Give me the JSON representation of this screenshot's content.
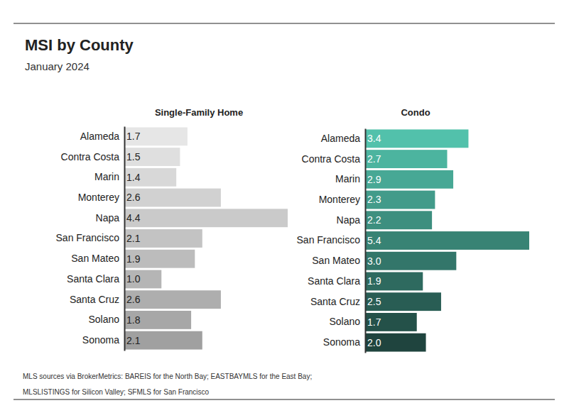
{
  "title": "MSI by County",
  "subtitle": "January 2024",
  "source": "MLS sources via BrokerMetrics: BAREIS for the North Bay; EASTBAYMLS for the East Bay; MLSLISTINGS for Silicon Valley; SFMLS for San Francisco",
  "chart_data": [
    {
      "type": "bar",
      "title": "Single-Family Home",
      "orientation": "horizontal",
      "categories": [
        "Alameda",
        "Contra Costa",
        "Marin",
        "Monterey",
        "Napa",
        "San Francisco",
        "San Mateo",
        "Santa Clara",
        "Santa Cruz",
        "Solano",
        "Sonoma"
      ],
      "values": [
        1.7,
        1.5,
        1.4,
        2.6,
        4.4,
        2.1,
        1.9,
        1.0,
        2.6,
        1.8,
        2.1
      ],
      "value_labels": [
        "1.7",
        "1.5",
        "1.4",
        "2.6",
        "4.4",
        "2.1",
        "1.9",
        "1.0",
        "2.6",
        "1.8",
        "2.1"
      ],
      "colors": [
        "#e6e6e6",
        "#dfdfdf",
        "#d8d8d8",
        "#d1d1d1",
        "#cacaca",
        "#c3c3c3",
        "#bcbcbc",
        "#b5b5b5",
        "#aeaeae",
        "#a7a7a7",
        "#a0a0a0"
      ],
      "xlim": [
        0,
        4.4
      ],
      "data_labels": true,
      "tick_labels": "y"
    },
    {
      "type": "bar",
      "title": "Condo",
      "orientation": "horizontal",
      "categories": [
        "Alameda",
        "Contra Costa",
        "Marin",
        "Monterey",
        "Napa",
        "San Francisco",
        "San Mateo",
        "Santa Clara",
        "Santa Cruz",
        "Solano",
        "Sonoma"
      ],
      "values": [
        3.4,
        2.7,
        2.9,
        2.3,
        2.2,
        5.4,
        3.0,
        1.9,
        2.5,
        1.7,
        2.0
      ],
      "value_labels": [
        "3.4",
        "2.7",
        "2.9",
        "2.3",
        "2.2",
        "5.4",
        "3.0",
        "1.9",
        "2.5",
        "1.7",
        "2.0"
      ],
      "colors": [
        "#52c1ab",
        "#4cb49f",
        "#47a895",
        "#429b8a",
        "#3d8f7f",
        "#388374",
        "#33766a",
        "#2e6a5f",
        "#295d54",
        "#245149",
        "#1f443e"
      ],
      "xlim": [
        0,
        5.4
      ],
      "data_labels": true,
      "tick_labels": "y"
    }
  ]
}
